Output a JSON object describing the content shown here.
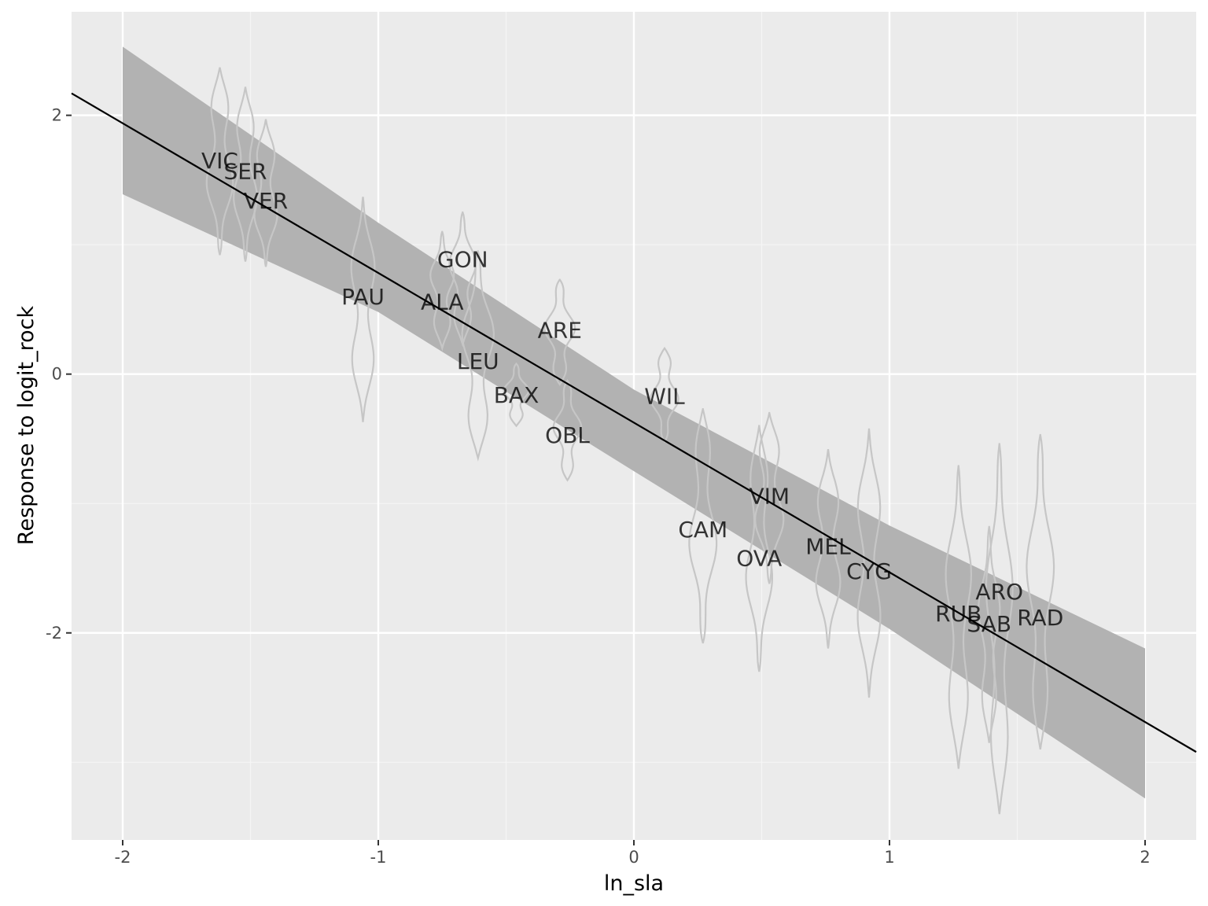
{
  "chart_data": {
    "type": "line",
    "title": "",
    "xlabel": "ln_sla",
    "ylabel": "Response to logit_rock",
    "xlim": [
      -2.2,
      2.2
    ],
    "ylim": [
      -3.6,
      2.8
    ],
    "x_ticks": [
      -2,
      -1,
      0,
      1,
      2
    ],
    "x_tick_labels": [
      "-2",
      "-1",
      "0",
      "1",
      "2"
    ],
    "y_ticks": [
      2,
      0,
      -2
    ],
    "y_tick_labels": [
      "2",
      "0",
      "-2"
    ],
    "grid": true,
    "legend": "none",
    "colors": {
      "panel_background": "#ebebeb",
      "grid_major": "#ffffff",
      "grid_minor": "#f5f5f5",
      "ribbon": "#b2b2b2",
      "violin_outline": "#c6c6c6",
      "fit_line": "#000000",
      "label_text": "#000000"
    },
    "fit_line": {
      "x": [
        -2.2,
        2.2
      ],
      "y": [
        2.17,
        -2.92
      ]
    },
    "confidence_band": {
      "x": [
        -2.0,
        -1.0,
        0.0,
        1.0,
        2.0
      ],
      "upper": [
        2.53,
        1.17,
        -0.12,
        -1.17,
        -2.12
      ],
      "lower": [
        1.39,
        0.48,
        -0.75,
        -1.97,
        -3.28
      ]
    },
    "species": [
      {
        "label": "VIC",
        "x": -1.62,
        "y": 1.65,
        "violin_min": 0.92,
        "violin_max": 2.37,
        "violin_width": 0.055
      },
      {
        "label": "SER",
        "x": -1.52,
        "y": 1.57,
        "violin_min": 0.87,
        "violin_max": 2.22,
        "violin_width": 0.05
      },
      {
        "label": "VER",
        "x": -1.44,
        "y": 1.34,
        "violin_min": 0.83,
        "violin_max": 1.97,
        "violin_width": 0.05
      },
      {
        "label": "PAU",
        "x": -1.06,
        "y": 0.6,
        "violin_min": -0.37,
        "violin_max": 1.37,
        "violin_width": 0.055
      },
      {
        "label": "GON",
        "x": -0.67,
        "y": 0.89,
        "violin_min": 0.23,
        "violin_max": 1.25,
        "violin_width": 0.055
      },
      {
        "label": "ALA",
        "x": -0.75,
        "y": 0.56,
        "violin_min": 0.2,
        "violin_max": 1.1,
        "violin_width": 0.05
      },
      {
        "label": "LEU",
        "x": -0.61,
        "y": 0.1,
        "violin_min": -0.65,
        "violin_max": 0.95,
        "violin_width": 0.065
      },
      {
        "label": "ARE",
        "x": -0.29,
        "y": 0.34,
        "violin_min": -0.08,
        "violin_max": 0.73,
        "violin_width": 0.06
      },
      {
        "label": "BAX",
        "x": -0.46,
        "y": -0.16,
        "violin_min": -0.4,
        "violin_max": 0.08,
        "violin_width": 0.05
      },
      {
        "label": "OBL",
        "x": -0.26,
        "y": -0.47,
        "violin_min": -0.82,
        "violin_max": -0.05,
        "violin_width": 0.055
      },
      {
        "label": "WIL",
        "x": 0.12,
        "y": -0.17,
        "violin_min": -0.52,
        "violin_max": 0.2,
        "violin_width": 0.055
      },
      {
        "label": "CAM",
        "x": 0.27,
        "y": -1.2,
        "violin_min": -2.08,
        "violin_max": -0.27,
        "violin_width": 0.055
      },
      {
        "label": "VIM",
        "x": 0.53,
        "y": -0.94,
        "violin_min": -1.62,
        "violin_max": -0.3,
        "violin_width": 0.06
      },
      {
        "label": "OVA",
        "x": 0.49,
        "y": -1.42,
        "violin_min": -2.3,
        "violin_max": -0.4,
        "violin_width": 0.055
      },
      {
        "label": "MEL",
        "x": 0.76,
        "y": -1.33,
        "violin_min": -2.12,
        "violin_max": -0.58,
        "violin_width": 0.055
      },
      {
        "label": "CYG",
        "x": 0.92,
        "y": -1.52,
        "violin_min": -2.5,
        "violin_max": -0.42,
        "violin_width": 0.055
      },
      {
        "label": "RUB",
        "x": 1.27,
        "y": -1.85,
        "violin_min": -3.05,
        "violin_max": -0.71,
        "violin_width": 0.055
      },
      {
        "label": "ARO",
        "x": 1.43,
        "y": -1.68,
        "violin_min": -3.4,
        "violin_max": -0.54,
        "violin_width": 0.055
      },
      {
        "label": "SAB",
        "x": 1.39,
        "y": -1.93,
        "violin_min": -2.85,
        "violin_max": -1.18,
        "violin_width": 0.045
      },
      {
        "label": "RAD",
        "x": 1.59,
        "y": -1.88,
        "violin_min": -2.9,
        "violin_max": -0.47,
        "violin_width": 0.055
      }
    ]
  }
}
